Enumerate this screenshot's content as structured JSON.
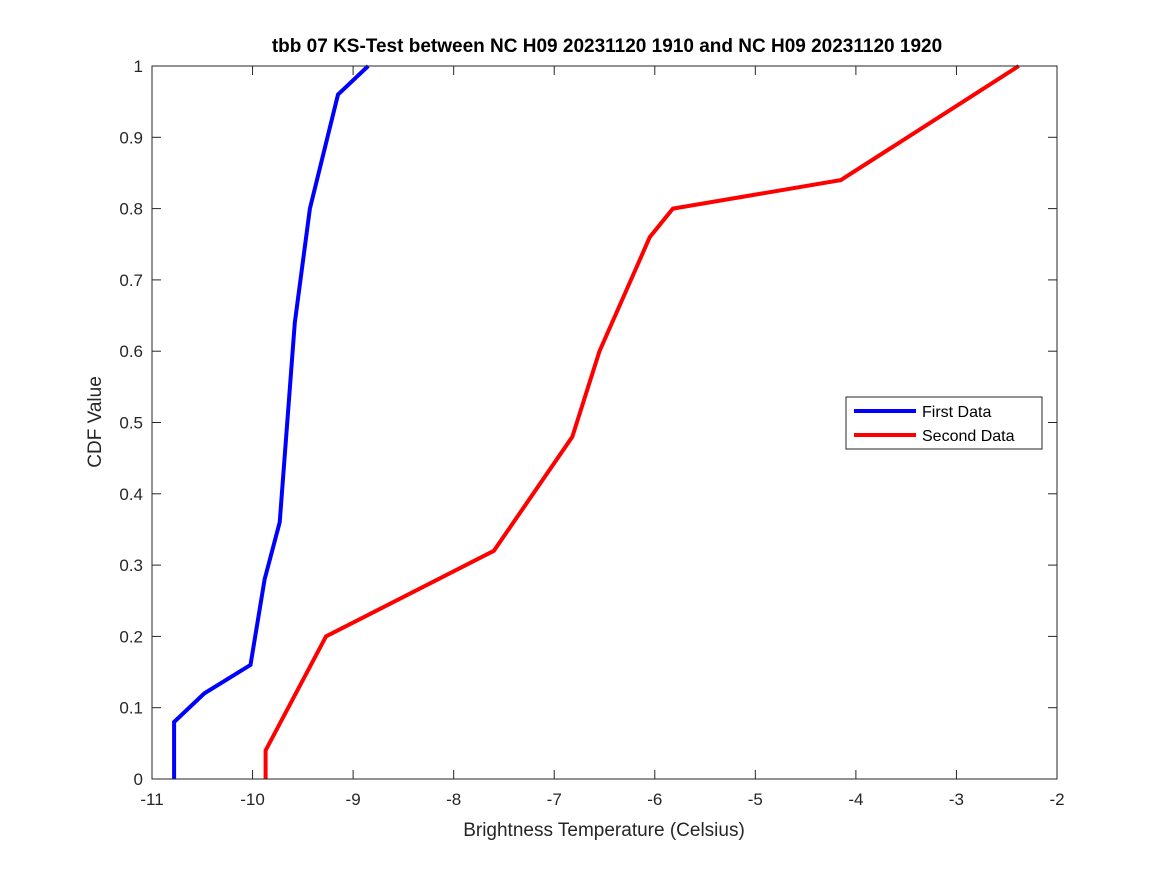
{
  "chart_data": {
    "type": "line",
    "title": "tbb 07 KS-Test between NC H09 20231120 1910 and NC H09 20231120 1920",
    "xlabel": "Brightness Temperature (Celsius)",
    "ylabel": "CDF Value",
    "xlim": [
      -11,
      -2
    ],
    "ylim": [
      0,
      1
    ],
    "xticks": [
      "-11",
      "-10",
      "-9",
      "-8",
      "-7",
      "-6",
      "-5",
      "-4",
      "-3",
      "-2"
    ],
    "yticks": [
      "0",
      "0.1",
      "0.2",
      "0.3",
      "0.4",
      "0.5",
      "0.6",
      "0.7",
      "0.8",
      "0.9",
      "1"
    ],
    "grid": false,
    "legend_position": "right",
    "series": [
      {
        "name": "First Data",
        "color": "#0000ff",
        "x": [
          -10.78,
          -10.78,
          -10.48,
          -10.02,
          -9.88,
          -9.73,
          -9.58,
          -9.43,
          -9.15,
          -8.85
        ],
        "y": [
          0,
          0.08,
          0.12,
          0.16,
          0.28,
          0.36,
          0.64,
          0.8,
          0.96,
          1.0
        ]
      },
      {
        "name": "Second Data",
        "color": "#ff0000",
        "x": [
          -9.87,
          -9.87,
          -9.27,
          -7.6,
          -6.82,
          -6.55,
          -6.05,
          -5.82,
          -4.15,
          -2.38
        ],
        "y": [
          0,
          0.04,
          0.2,
          0.32,
          0.48,
          0.6,
          0.76,
          0.8,
          0.84,
          1.0
        ]
      }
    ]
  }
}
